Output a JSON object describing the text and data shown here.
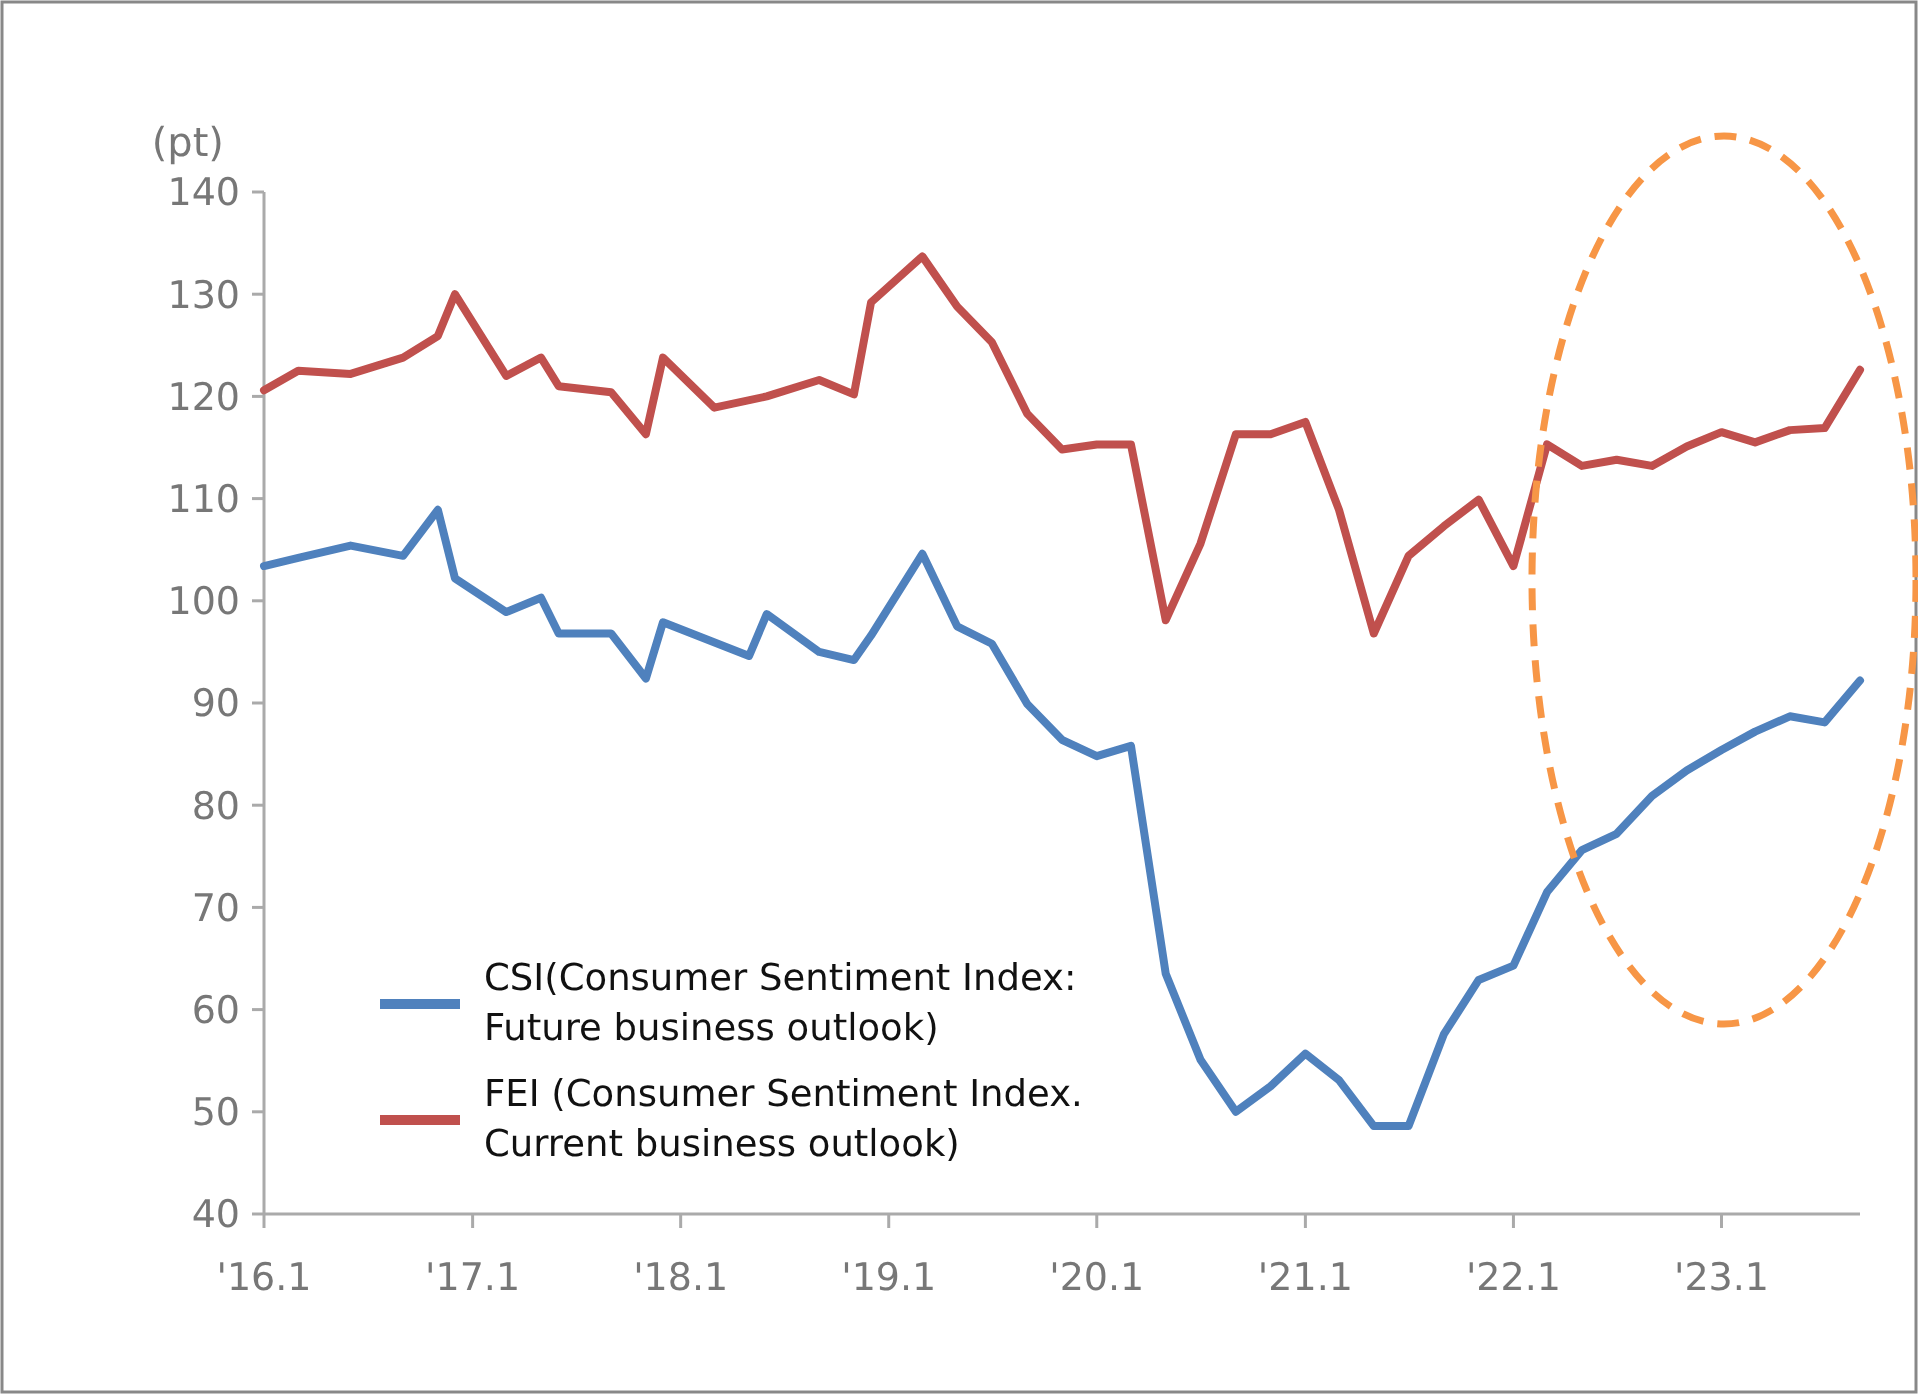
{
  "chart_data": {
    "type": "line",
    "ylabel": "(pt)",
    "x": [
      "2016-01",
      "2016-03",
      "2016-06",
      "2016-09",
      "2016-11",
      "2016-12",
      "2017-03",
      "2017-05",
      "2017-06",
      "2017-09",
      "2017-11",
      "2017-12",
      "2018-03",
      "2018-06",
      "2018-09",
      "2018-11",
      "2018-12",
      "2019-03",
      "2019-05",
      "2019-07",
      "2019-09",
      "2019-11",
      "2020-01",
      "2020-03",
      "2020-05",
      "2020-07",
      "2020-09",
      "2020-11",
      "2021-01",
      "2021-03",
      "2021-05",
      "2021-07",
      "2021-09",
      "2021-11",
      "2022-01",
      "2022-03",
      "2022-05",
      "2022-07",
      "2022-09",
      "2022-11",
      "2023-01",
      "2023-03",
      "2023-05",
      "2023-07",
      "2023-09"
    ],
    "series": [
      {
        "name": "CSI(Consumer Sentiment Index:\nFuture business outlook)",
        "color": "#4f81bd",
        "x": [
          "2016-01",
          "2016-03",
          "2016-06",
          "2016-09",
          "2016-11",
          "2016-12",
          "2017-03",
          "2017-05",
          "2017-06",
          "2017-09",
          "2017-11",
          "2017-12",
          "2018-05",
          "2018-06",
          "2018-09",
          "2018-11",
          "2018-12",
          "2019-03",
          "2019-05",
          "2019-07",
          "2019-09",
          "2019-11",
          "2020-01",
          "2020-03",
          "2020-05",
          "2020-07",
          "2020-09",
          "2020-11",
          "2021-01",
          "2021-03",
          "2021-05",
          "2021-07",
          "2021-09",
          "2021-11",
          "2022-01",
          "2022-03",
          "2022-05",
          "2022-07",
          "2022-09",
          "2022-11",
          "2023-01",
          "2023-03",
          "2023-05",
          "2023-07",
          "2023-09"
        ],
        "values": [
          103.4,
          104.2,
          105.4,
          104.4,
          108.9,
          102.2,
          98.9,
          100.3,
          96.8,
          96.8,
          92.4,
          97.9,
          94.6,
          98.7,
          95,
          94.2,
          96.6,
          104.6,
          97.5,
          95.8,
          89.9,
          86.4,
          84.8,
          85.8,
          63.5,
          55.1,
          50,
          52.5,
          55.7,
          53.1,
          48.6,
          48.6,
          57.6,
          62.9,
          64.3,
          71.5,
          75.6,
          77.2,
          80.9,
          83.4,
          85.4,
          87.2,
          88.7,
          88.1,
          92.2
        ]
      },
      {
        "name": "FEI (Consumer Sentiment Index.\nCurrent business outlook)",
        "color": "#c0504d",
        "values": [
          120.6,
          122.5,
          122.2,
          123.8,
          125.9,
          130,
          122,
          123.8,
          121,
          120.4,
          116.3,
          123.8,
          118.9,
          120,
          121.6,
          120.2,
          129.2,
          133.7,
          128.8,
          125.3,
          118.3,
          114.8,
          115.3,
          115.3,
          98.1,
          105.6,
          116.3,
          116.3,
          117.5,
          108.9,
          96.8,
          104.4,
          107.3,
          109.9,
          103.4,
          115.3,
          113.2,
          113.8,
          113.2,
          115.1,
          116.5,
          115.5,
          116.7,
          116.9,
          122.6
        ]
      }
    ],
    "xlim": [
      "2016-01",
      "2023-09"
    ],
    "xticks": [
      {
        "value": "2016-01",
        "label": "'16.1"
      },
      {
        "value": "2017-01",
        "label": "'17.1"
      },
      {
        "value": "2018-01",
        "label": "'18.1"
      },
      {
        "value": "2019-01",
        "label": "'19.1"
      },
      {
        "value": "2020-01",
        "label": "'20.1"
      },
      {
        "value": "2021-01",
        "label": "'21.1"
      },
      {
        "value": "2022-01",
        "label": "'22.1"
      },
      {
        "value": "2023-01",
        "label": "'23.1"
      }
    ],
    "ylim": [
      40,
      140
    ],
    "yticks": [
      40,
      50,
      60,
      70,
      80,
      90,
      100,
      110,
      120,
      130,
      140
    ],
    "legend": "bottom left",
    "grid": false,
    "marker": "none",
    "line_style": "solid"
  }
}
